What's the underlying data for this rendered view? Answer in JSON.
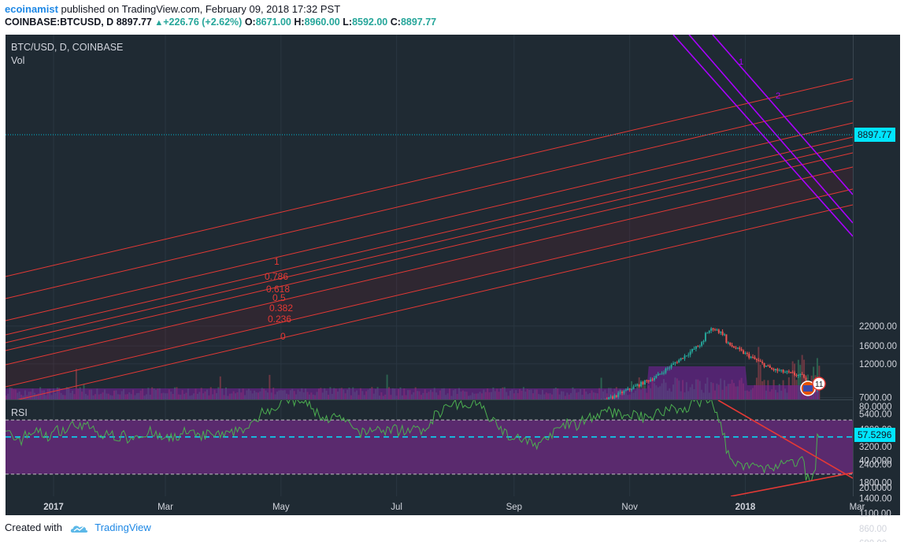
{
  "header": {
    "author": "ecoinamist",
    "published_text": "published on TradingView.com, February 09, 2018 17:32 PST",
    "symbol": "COINBASE:BTCUSD, D",
    "last": "8897.77",
    "change": "+226.76 (+2.62%)",
    "o_label": "O:",
    "o": "8671.00",
    "h_label": "H:",
    "h": "8960.00",
    "l_label": "L:",
    "l": "8592.00",
    "c_label": "C:",
    "c": "8897.77"
  },
  "pane": {
    "title": "BTC/USD, D, COINBASE",
    "vol_label": "Vol",
    "rsi_label": "RSI",
    "price_tag": "8897.77",
    "rsi_tag": "57.5296",
    "event_badge": "11"
  },
  "footer": {
    "created_with": "Created with",
    "brand": "TradingView"
  },
  "colors": {
    "background": "#1f2a33",
    "up": "#26a69a",
    "down": "#ef5350",
    "fib_line": "#e53935",
    "channel_line": "#aa00ff",
    "rsi_line": "#4caf50",
    "rsi_band": "#5a2a6e",
    "accent_cyan": "#00e5ff"
  },
  "chart_data": [
    {
      "type": "candlestick",
      "title": "BTC/USD, D, COINBASE",
      "scale": "log",
      "y_ticks": [
        "22000.00",
        "16000.00",
        "12000.00",
        "8897.77",
        "7000.00",
        "5400.00",
        "4200.00",
        "3200.00",
        "2400.00",
        "1800.00",
        "1400.00",
        "1100.00",
        "860.00",
        "680.00"
      ],
      "x_ticks": [
        "2017",
        "Mar",
        "May",
        "Jul",
        "Sep",
        "Nov",
        "2018",
        "Mar"
      ],
      "current_price": 8897.77,
      "ylim": [
        600,
        23000
      ],
      "monthly_path": [
        {
          "date": "2016-12",
          "price": 780
        },
        {
          "date": "2017-01",
          "price": 970
        },
        {
          "date": "2017-02",
          "price": 1050
        },
        {
          "date": "2017-03",
          "price": 1150
        },
        {
          "date": "2017-04",
          "price": 1250
        },
        {
          "date": "2017-05",
          "price": 2300
        },
        {
          "date": "2017-06",
          "price": 2500
        },
        {
          "date": "2017-07",
          "price": 2600
        },
        {
          "date": "2017-08",
          "price": 4500
        },
        {
          "date": "2017-09",
          "price": 4300
        },
        {
          "date": "2017-10",
          "price": 6300
        },
        {
          "date": "2017-11",
          "price": 9800
        },
        {
          "date": "2017-12",
          "price": 19000
        },
        {
          "date": "2018-01",
          "price": 11000
        },
        {
          "date": "2018-02",
          "price": 8897.77
        }
      ],
      "fib_labels": [
        "1",
        "0.786",
        "0.618",
        "0.5",
        "0.382",
        "0.236",
        "0"
      ],
      "channel_labels": [
        "1",
        "2"
      ]
    },
    {
      "type": "line",
      "title": "RSI",
      "y_ticks": [
        "80.0000",
        "57.5296",
        "40.0000",
        "20.0000"
      ],
      "ylim": [
        15,
        85
      ],
      "bands": [
        70,
        30
      ],
      "current_value": 57.5296
    }
  ]
}
